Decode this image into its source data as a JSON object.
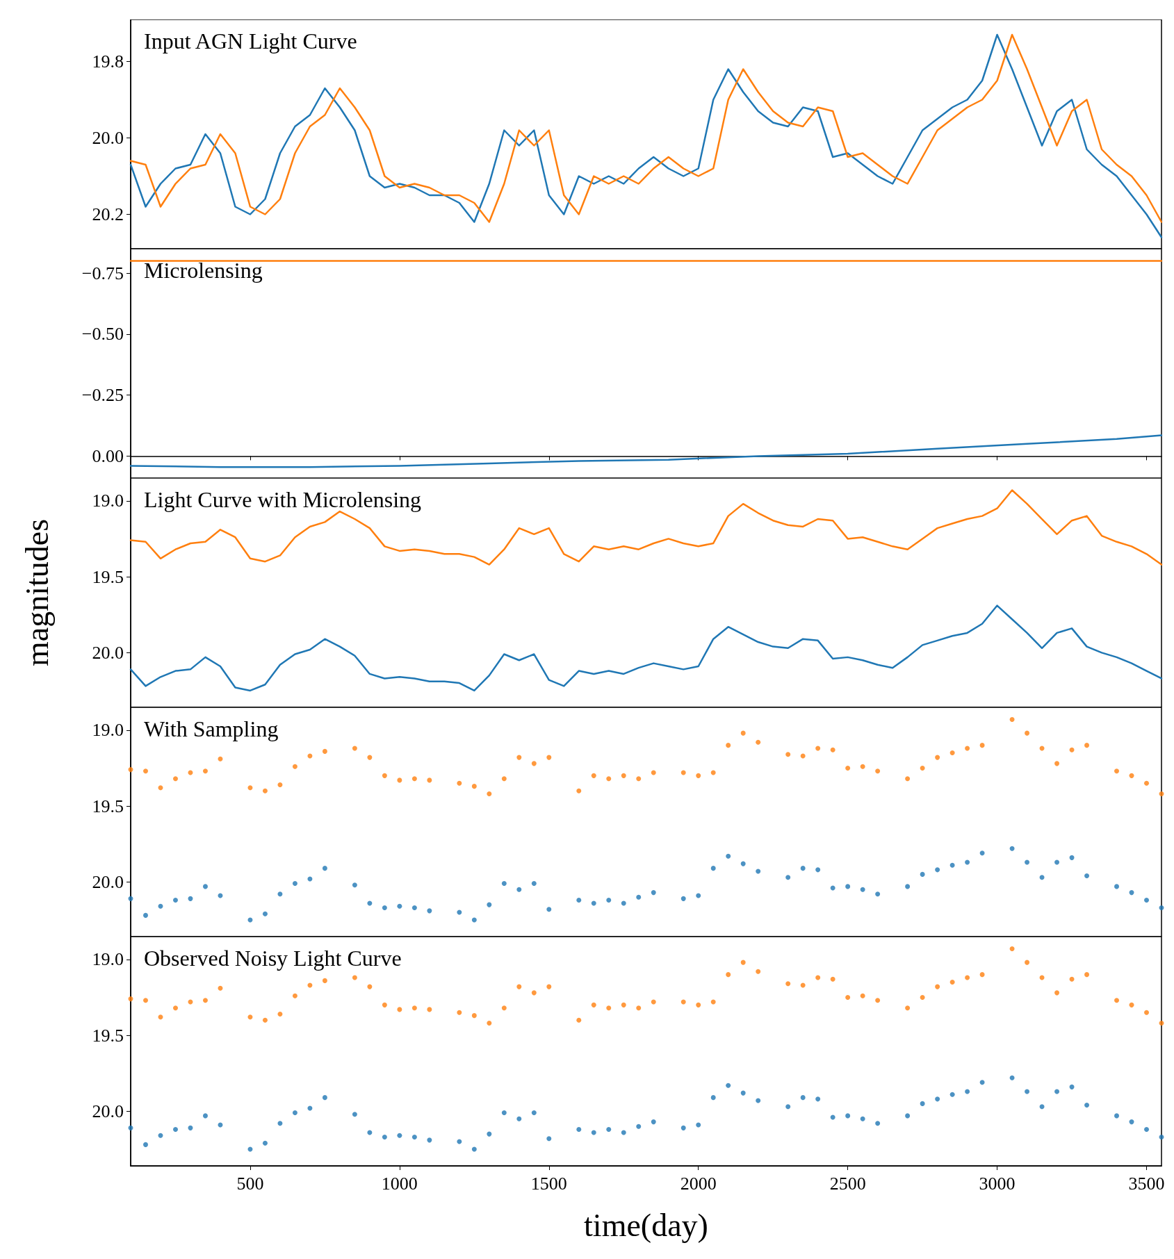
{
  "chart_data": [
    {
      "type": "line",
      "title": "Input AGN Light Curve",
      "tick_labels": "y",
      "xlim": [
        100,
        3550
      ],
      "xticks": [
        500,
        1000,
        1500,
        2000,
        2500,
        3000,
        3500
      ],
      "ylim": [
        20.29,
        19.69
      ],
      "yticks": [
        19.8,
        {
          "value": 20,
          "label": "20.0"
        },
        20.2
      ],
      "x": [
        100,
        150,
        200,
        250,
        300,
        350,
        400,
        450,
        500,
        550,
        600,
        650,
        700,
        750,
        800,
        850,
        900,
        950,
        1000,
        1050,
        1100,
        1150,
        1200,
        1250,
        1300,
        1350,
        1400,
        1450,
        1500,
        1550,
        1600,
        1650,
        1700,
        1750,
        1800,
        1850,
        1900,
        1950,
        2000,
        2050,
        2100,
        2150,
        2200,
        2250,
        2300,
        2350,
        2400,
        2450,
        2500,
        2550,
        2600,
        2650,
        2700,
        2750,
        2800,
        2850,
        2900,
        2950,
        3000,
        3050,
        3100,
        3150,
        3200,
        3250,
        3300,
        3350,
        3400,
        3450,
        3500,
        3550
      ],
      "series": [
        {
          "color": "#1f77b4",
          "values": [
            20.07,
            20.18,
            20.12,
            20.08,
            20.07,
            19.99,
            20.04,
            20.18,
            20.2,
            20.16,
            20.04,
            19.97,
            19.94,
            19.87,
            19.92,
            19.98,
            20.1,
            20.13,
            20.12,
            20.13,
            20.15,
            20.15,
            20.17,
            20.22,
            20.12,
            19.98,
            20.02,
            19.98,
            20.15,
            20.2,
            20.1,
            20.12,
            20.1,
            20.12,
            20.08,
            20.05,
            20.08,
            20.1,
            20.08,
            19.9,
            19.82,
            19.88,
            19.93,
            19.96,
            19.97,
            19.92,
            19.93,
            20.05,
            20.04,
            20.07,
            20.1,
            20.12,
            20.05,
            19.98,
            19.95,
            19.92,
            19.9,
            19.85,
            19.73,
            19.82,
            19.92,
            20.02,
            19.93,
            19.9,
            20.03,
            20.07,
            20.1,
            20.15,
            20.2,
            20.26
          ]
        },
        {
          "color": "#ff7f0e",
          "values": [
            20.06,
            20.07,
            20.18,
            20.12,
            20.08,
            20.07,
            19.99,
            20.04,
            20.18,
            20.2,
            20.16,
            20.04,
            19.97,
            19.94,
            19.87,
            19.92,
            19.98,
            20.1,
            20.13,
            20.12,
            20.13,
            20.15,
            20.15,
            20.17,
            20.22,
            20.12,
            19.98,
            20.02,
            19.98,
            20.15,
            20.2,
            20.1,
            20.12,
            20.1,
            20.12,
            20.08,
            20.05,
            20.08,
            20.1,
            20.08,
            19.9,
            19.82,
            19.88,
            19.93,
            19.96,
            19.97,
            19.92,
            19.93,
            20.05,
            20.04,
            20.07,
            20.1,
            20.12,
            20.05,
            19.98,
            19.95,
            19.92,
            19.9,
            19.85,
            19.73,
            19.82,
            19.92,
            20.02,
            19.93,
            19.9,
            20.03,
            20.07,
            20.1,
            20.15,
            20.22
          ]
        }
      ]
    },
    {
      "type": "line",
      "title": "Microlensing",
      "tick_labels": "y",
      "xlim": [
        100,
        3550
      ],
      "xticks": [
        500,
        1000,
        1500,
        2000,
        2500,
        3000,
        3500
      ],
      "ylim": [
        0.09,
        -0.85
      ],
      "yticks": [
        {
          "value": -0.75,
          "label": "−0.75"
        },
        {
          "value": -0.5,
          "label": "−0.50"
        },
        {
          "value": -0.25,
          "label": "−0.25"
        },
        {
          "value": 0,
          "label": "0.00"
        }
      ],
      "series": [
        {
          "color": "#1f77b4",
          "x": [
            100,
            400,
            700,
            1000,
            1300,
            1600,
            1900,
            2200,
            2500,
            2800,
            3100,
            3400,
            3550
          ],
          "values": [
            0.04,
            0.045,
            0.045,
            0.04,
            0.03,
            0.02,
            0.015,
            0.0,
            -0.01,
            -0.03,
            -0.05,
            -0.07,
            -0.085
          ]
        },
        {
          "color": "#ff7f0e",
          "x": [
            100,
            3550
          ],
          "values": [
            -0.8,
            -0.8
          ]
        }
      ]
    },
    {
      "type": "line",
      "title": "Light Curve with Microlensing",
      "ylabel": "magnitudes",
      "tick_labels": "y",
      "xlim": [
        100,
        3550
      ],
      "xticks": [
        500,
        1000,
        1500,
        2000,
        2500,
        3000,
        3500
      ],
      "ylim": [
        20.36,
        18.85
      ],
      "yticks": [
        {
          "value": 19,
          "label": "19.0"
        },
        19.5,
        {
          "value": 20,
          "label": "20.0"
        }
      ],
      "x": [
        100,
        150,
        200,
        250,
        300,
        350,
        400,
        450,
        500,
        550,
        600,
        650,
        700,
        750,
        800,
        850,
        900,
        950,
        1000,
        1050,
        1100,
        1150,
        1200,
        1250,
        1300,
        1350,
        1400,
        1450,
        1500,
        1550,
        1600,
        1650,
        1700,
        1750,
        1800,
        1850,
        1900,
        1950,
        2000,
        2050,
        2100,
        2150,
        2200,
        2250,
        2300,
        2350,
        2400,
        2450,
        2500,
        2550,
        2600,
        2650,
        2700,
        2750,
        2800,
        2850,
        2900,
        2950,
        3000,
        3050,
        3100,
        3150,
        3200,
        3250,
        3300,
        3350,
        3400,
        3450,
        3500,
        3550
      ],
      "series": [
        {
          "color": "#1f77b4",
          "values": [
            20.11,
            20.22,
            20.16,
            20.12,
            20.11,
            20.03,
            20.09,
            20.23,
            20.25,
            20.21,
            20.08,
            20.01,
            19.98,
            19.91,
            19.96,
            20.02,
            20.14,
            20.17,
            20.16,
            20.17,
            20.19,
            20.19,
            20.2,
            20.25,
            20.15,
            20.01,
            20.05,
            20.01,
            20.18,
            20.22,
            20.12,
            20.14,
            20.12,
            20.14,
            20.1,
            20.07,
            20.09,
            20.11,
            20.09,
            19.91,
            19.83,
            19.88,
            19.93,
            19.96,
            19.97,
            19.91,
            19.92,
            20.04,
            20.03,
            20.05,
            20.08,
            20.1,
            20.03,
            19.95,
            19.92,
            19.89,
            19.87,
            19.81,
            19.69,
            19.78,
            19.87,
            19.97,
            19.87,
            19.84,
            19.96,
            20.0,
            20.03,
            20.07,
            20.12,
            20.17
          ]
        },
        {
          "color": "#ff7f0e",
          "values": [
            19.26,
            19.27,
            19.38,
            19.32,
            19.28,
            19.27,
            19.19,
            19.24,
            19.38,
            19.4,
            19.36,
            19.24,
            19.17,
            19.14,
            19.07,
            19.12,
            19.18,
            19.3,
            19.33,
            19.32,
            19.33,
            19.35,
            19.35,
            19.37,
            19.42,
            19.32,
            19.18,
            19.22,
            19.18,
            19.35,
            19.4,
            19.3,
            19.32,
            19.3,
            19.32,
            19.28,
            19.25,
            19.28,
            19.3,
            19.28,
            19.1,
            19.02,
            19.08,
            19.13,
            19.16,
            19.17,
            19.12,
            19.13,
            19.25,
            19.24,
            19.27,
            19.3,
            19.32,
            19.25,
            19.18,
            19.15,
            19.12,
            19.1,
            19.05,
            18.93,
            19.02,
            19.12,
            19.22,
            19.13,
            19.1,
            19.23,
            19.27,
            19.3,
            19.35,
            19.42
          ]
        }
      ]
    },
    {
      "type": "scatter",
      "title": "With Sampling",
      "marker": "circle",
      "tick_labels": "y",
      "xlim": [
        100,
        3550
      ],
      "xticks": [
        500,
        1000,
        1500,
        2000,
        2500,
        3000,
        3500
      ],
      "ylim": [
        20.36,
        18.85
      ],
      "yticks": [
        {
          "value": 19,
          "label": "19.0"
        },
        19.5,
        {
          "value": 20,
          "label": "20.0"
        }
      ],
      "x": [
        100,
        150,
        200,
        250,
        300,
        350,
        400,
        500,
        550,
        600,
        650,
        700,
        750,
        850,
        900,
        950,
        1000,
        1050,
        1100,
        1200,
        1250,
        1300,
        1350,
        1400,
        1450,
        1500,
        1600,
        1650,
        1700,
        1750,
        1800,
        1850,
        1950,
        2000,
        2050,
        2100,
        2150,
        2200,
        2300,
        2350,
        2400,
        2450,
        2500,
        2550,
        2600,
        2700,
        2750,
        2800,
        2850,
        2900,
        2950,
        3050,
        3100,
        3150,
        3200,
        3250,
        3300,
        3400,
        3450,
        3500,
        3550
      ],
      "series": [
        {
          "color": "#1f77b4",
          "values": [
            20.11,
            20.22,
            20.16,
            20.12,
            20.11,
            20.03,
            20.09,
            20.25,
            20.21,
            20.08,
            20.01,
            19.98,
            19.91,
            20.02,
            20.14,
            20.17,
            20.16,
            20.17,
            20.19,
            20.2,
            20.25,
            20.15,
            20.01,
            20.05,
            20.01,
            20.18,
            20.12,
            20.14,
            20.12,
            20.14,
            20.1,
            20.07,
            20.11,
            20.09,
            19.91,
            19.83,
            19.88,
            19.93,
            19.97,
            19.91,
            19.92,
            20.04,
            20.03,
            20.05,
            20.08,
            20.03,
            19.95,
            19.92,
            19.89,
            19.87,
            19.81,
            19.78,
            19.87,
            19.97,
            19.87,
            19.84,
            19.96,
            20.03,
            20.07,
            20.12,
            20.17
          ]
        },
        {
          "color": "#ff7f0e",
          "values": [
            19.26,
            19.27,
            19.38,
            19.32,
            19.28,
            19.27,
            19.19,
            19.38,
            19.4,
            19.36,
            19.24,
            19.17,
            19.14,
            19.12,
            19.18,
            19.3,
            19.33,
            19.32,
            19.33,
            19.35,
            19.37,
            19.42,
            19.32,
            19.18,
            19.22,
            19.18,
            19.4,
            19.3,
            19.32,
            19.3,
            19.32,
            19.28,
            19.28,
            19.3,
            19.28,
            19.1,
            19.02,
            19.08,
            19.16,
            19.17,
            19.12,
            19.13,
            19.25,
            19.24,
            19.27,
            19.32,
            19.25,
            19.18,
            19.15,
            19.12,
            19.1,
            18.93,
            19.02,
            19.12,
            19.22,
            19.13,
            19.1,
            19.27,
            19.3,
            19.35,
            19.42
          ]
        }
      ]
    },
    {
      "type": "scatter",
      "title": "Observed Noisy Light Curve",
      "xlabel": "time(day)",
      "marker": "circle",
      "xlim": [
        100,
        3550
      ],
      "xticks": [
        500,
        1000,
        1500,
        2000,
        2500,
        3000,
        3500
      ],
      "ylim": [
        20.36,
        18.85
      ],
      "yticks": [
        {
          "value": 19,
          "label": "19.0"
        },
        19.5,
        {
          "value": 20,
          "label": "20.0"
        }
      ],
      "x": [
        100,
        150,
        200,
        250,
        300,
        350,
        400,
        500,
        550,
        600,
        650,
        700,
        750,
        850,
        900,
        950,
        1000,
        1050,
        1100,
        1200,
        1250,
        1300,
        1350,
        1400,
        1450,
        1500,
        1600,
        1650,
        1700,
        1750,
        1800,
        1850,
        1950,
        2000,
        2050,
        2100,
        2150,
        2200,
        2300,
        2350,
        2400,
        2450,
        2500,
        2550,
        2600,
        2700,
        2750,
        2800,
        2850,
        2900,
        2950,
        3050,
        3100,
        3150,
        3200,
        3250,
        3300,
        3400,
        3450,
        3500,
        3550
      ],
      "series": [
        {
          "color": "#1f77b4",
          "values": [
            20.11,
            20.22,
            20.16,
            20.12,
            20.11,
            20.03,
            20.09,
            20.25,
            20.21,
            20.08,
            20.01,
            19.98,
            19.91,
            20.02,
            20.14,
            20.17,
            20.16,
            20.17,
            20.19,
            20.2,
            20.25,
            20.15,
            20.01,
            20.05,
            20.01,
            20.18,
            20.12,
            20.14,
            20.12,
            20.14,
            20.1,
            20.07,
            20.11,
            20.09,
            19.91,
            19.83,
            19.88,
            19.93,
            19.97,
            19.91,
            19.92,
            20.04,
            20.03,
            20.05,
            20.08,
            20.03,
            19.95,
            19.92,
            19.89,
            19.87,
            19.81,
            19.78,
            19.87,
            19.97,
            19.87,
            19.84,
            19.96,
            20.03,
            20.07,
            20.12,
            20.17
          ]
        },
        {
          "color": "#ff7f0e",
          "values": [
            19.26,
            19.27,
            19.38,
            19.32,
            19.28,
            19.27,
            19.19,
            19.38,
            19.4,
            19.36,
            19.24,
            19.17,
            19.14,
            19.12,
            19.18,
            19.3,
            19.33,
            19.32,
            19.33,
            19.35,
            19.37,
            19.42,
            19.32,
            19.18,
            19.22,
            19.18,
            19.4,
            19.3,
            19.32,
            19.3,
            19.32,
            19.28,
            19.28,
            19.3,
            19.28,
            19.1,
            19.02,
            19.08,
            19.16,
            19.17,
            19.12,
            19.13,
            19.25,
            19.24,
            19.27,
            19.32,
            19.25,
            19.18,
            19.15,
            19.12,
            19.1,
            18.93,
            19.02,
            19.12,
            19.22,
            19.13,
            19.1,
            19.27,
            19.3,
            19.35,
            19.42
          ]
        }
      ]
    }
  ]
}
